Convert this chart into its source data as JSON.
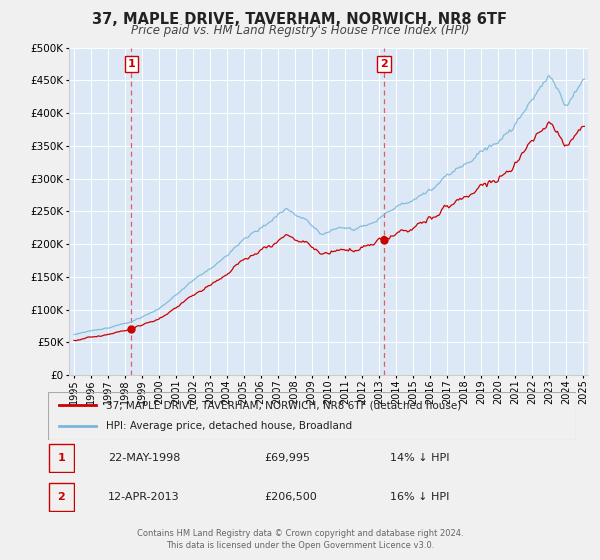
{
  "title": "37, MAPLE DRIVE, TAVERHAM, NORWICH, NR8 6TF",
  "subtitle": "Price paid vs. HM Land Registry's House Price Index (HPI)",
  "hpi_label": "HPI: Average price, detached house, Broadland",
  "property_label": "37, MAPLE DRIVE, TAVERHAM, NORWICH, NR8 6TF (detached house)",
  "sale1_date": "22-MAY-1998",
  "sale1_price": 69995,
  "sale1_hpi_pct": "14% ↓ HPI",
  "sale2_date": "12-APR-2013",
  "sale2_price": 206500,
  "sale2_hpi_pct": "16% ↓ HPI",
  "sale1_year": 1998.38,
  "sale2_year": 2013.27,
  "ylim": [
    0,
    500000
  ],
  "yticks": [
    0,
    50000,
    100000,
    150000,
    200000,
    250000,
    300000,
    350000,
    400000,
    450000,
    500000
  ],
  "xlim": [
    1994.7,
    2025.3
  ],
  "hpi_color": "#7ab8d9",
  "property_color": "#cc0000",
  "plot_bg": "#dce8f5",
  "grid_color": "#ffffff",
  "fig_bg": "#f0f0f0",
  "footnote1": "Contains HM Land Registry data © Crown copyright and database right 2024.",
  "footnote2": "This data is licensed under the Open Government Licence v3.0."
}
